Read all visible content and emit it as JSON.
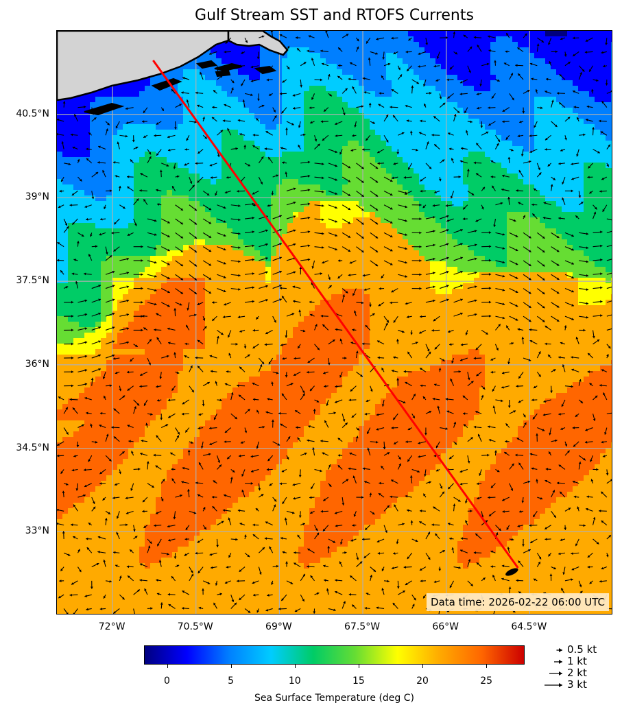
{
  "title": "Gulf Stream SST and RTOFS Currents",
  "map": {
    "lon_range": [
      -73.0,
      -63.0
    ],
    "lat_range": [
      31.5,
      42.0
    ],
    "land_color": "#d3d3d3",
    "grid_color": "#b0b0b0",
    "lat_ticks": [
      {
        "value": 40.5,
        "label": "40.5°N"
      },
      {
        "value": 39.0,
        "label": "39°N"
      },
      {
        "value": 37.5,
        "label": "37.5°N"
      },
      {
        "value": 36.0,
        "label": "36°N"
      },
      {
        "value": 34.5,
        "label": "34.5°N"
      },
      {
        "value": 33.0,
        "label": "33°N"
      }
    ],
    "lon_ticks": [
      {
        "value": -72.0,
        "label": "72°W"
      },
      {
        "value": -70.5,
        "label": "70.5°W"
      },
      {
        "value": -69.0,
        "label": "69°W"
      },
      {
        "value": -67.5,
        "label": "67.5°W"
      },
      {
        "value": -66.0,
        "label": "66°W"
      },
      {
        "value": -64.5,
        "label": "64.5°W"
      }
    ],
    "route": {
      "color": "#ff0000",
      "start": {
        "lon": -71.27,
        "lat": 41.47
      },
      "end": {
        "lon": -64.71,
        "lat": 32.35
      }
    },
    "data_time": "Data time: 2026-02-22 06:00 UTC"
  },
  "colorbar": {
    "title": "Sea Surface Temperature (deg C)",
    "range": [
      -1.8,
      28.0
    ],
    "colors": [
      "#00007f",
      "#0000ff",
      "#007fff",
      "#00ccff",
      "#00cc66",
      "#66dd33",
      "#ffff00",
      "#ffaa00",
      "#ff6600",
      "#cc0000"
    ],
    "ticks": [
      {
        "value": 0,
        "label": "0"
      },
      {
        "value": 5,
        "label": "5"
      },
      {
        "value": 10,
        "label": "10"
      },
      {
        "value": 15,
        "label": "15"
      },
      {
        "value": 20,
        "label": "20"
      },
      {
        "value": 25,
        "label": "25"
      }
    ]
  },
  "current_key": [
    {
      "speed": 0.5,
      "label": "0.5 kt"
    },
    {
      "speed": 1,
      "label": "1 kt"
    },
    {
      "speed": 2,
      "label": "2 kt"
    },
    {
      "speed": 3,
      "label": "3 kt"
    }
  ]
}
